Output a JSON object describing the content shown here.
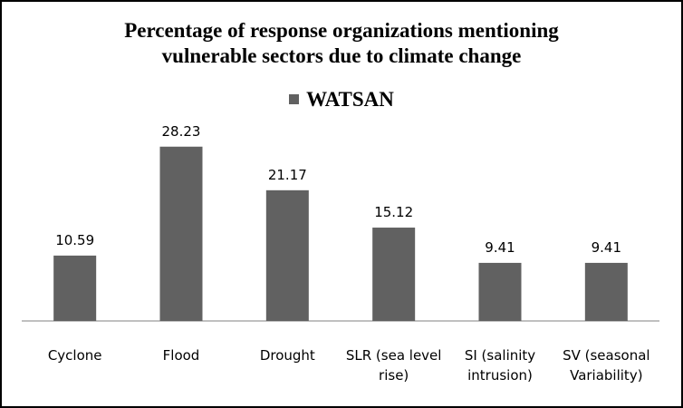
{
  "chart_data": {
    "type": "bar",
    "title": "Percentage of response organizations mentioning\nvulnerable sectors due to climate change",
    "categories": [
      [
        "Cyclone"
      ],
      [
        "Flood"
      ],
      [
        "Drought"
      ],
      [
        "SLR (sea level",
        "rise)"
      ],
      [
        "SI (salinity",
        "intrusion)"
      ],
      [
        "SV (seasonal",
        "Variability)"
      ]
    ],
    "series": [
      {
        "name": "WATSAN",
        "values": [
          10.59,
          28.23,
          21.17,
          15.12,
          9.41,
          9.41
        ]
      }
    ],
    "data_labels": [
      "10.59",
      "28.23",
      "21.17",
      "15.12",
      "9.41",
      "9.41"
    ],
    "xlabel": "",
    "ylabel": "",
    "ylim": [
      0,
      30
    ],
    "legend_position": "top",
    "grid": false,
    "colors": {
      "bar": "#616161",
      "axis": "#808080"
    }
  }
}
